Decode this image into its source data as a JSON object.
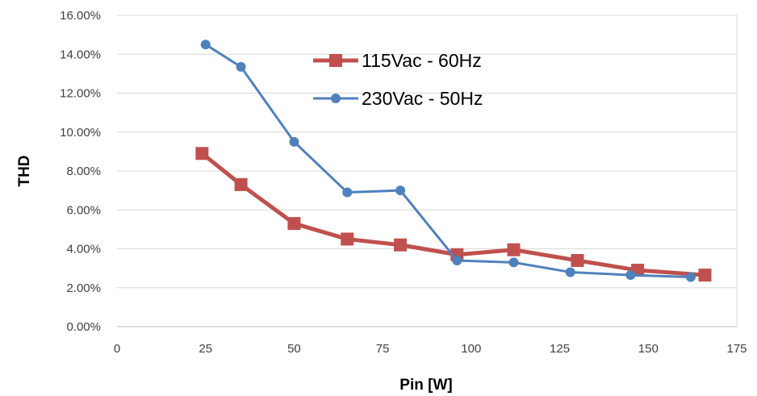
{
  "chart_data": {
    "type": "line",
    "title": "",
    "xlabel": "Pin [W]",
    "ylabel": "THD",
    "xlim": [
      0,
      175
    ],
    "ylim": [
      0,
      16
    ],
    "x_ticks": [
      "0",
      "25",
      "50",
      "75",
      "100",
      "125",
      "150",
      "175"
    ],
    "y_ticks": [
      "0.00%",
      "2.00%",
      "4.00%",
      "6.00%",
      "8.00%",
      "10.00%",
      "12.00%",
      "14.00%",
      "16.00%"
    ],
    "grid": "horizontal",
    "legend_position": "top-center",
    "series": [
      {
        "name": "115Vac - 60Hz",
        "color": "#c0504d",
        "marker": "square",
        "x": [
          24,
          35,
          50,
          65,
          80,
          96,
          112,
          130,
          147,
          166
        ],
        "y": [
          8.9,
          7.3,
          5.3,
          4.5,
          4.2,
          3.7,
          3.95,
          3.4,
          2.9,
          2.65
        ]
      },
      {
        "name": "230Vac - 50Hz",
        "color": "#4f81bd",
        "marker": "circle",
        "x": [
          25,
          35,
          50,
          65,
          80,
          96,
          112,
          128,
          145,
          162
        ],
        "y": [
          14.5,
          13.35,
          9.5,
          6.9,
          7.0,
          3.4,
          3.3,
          2.8,
          2.65,
          2.55
        ]
      }
    ]
  }
}
